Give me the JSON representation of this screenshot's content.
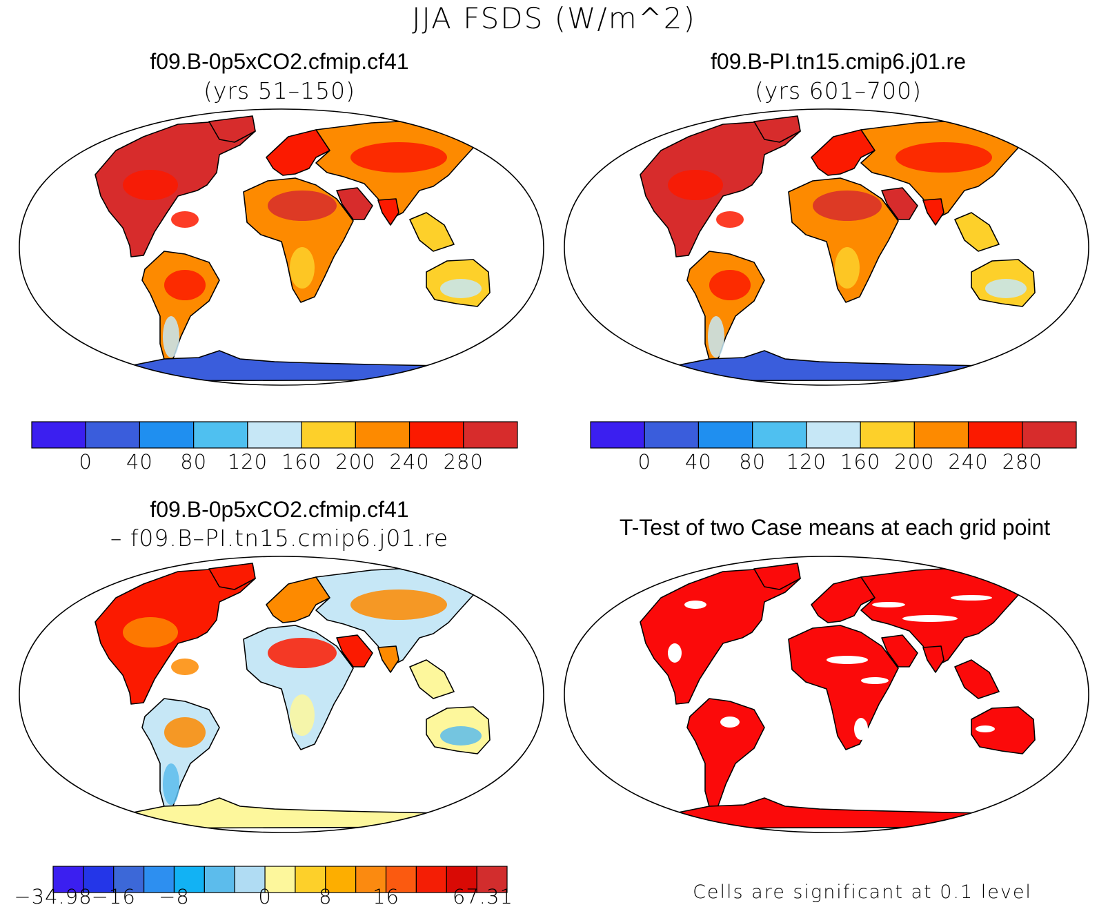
{
  "title": "JJA FSDS (W/m^2)",
  "panels": {
    "top_left": {
      "title": "f09.B-0p5xCO2.cfmip.cf41",
      "subtitle": "(yrs 51–150)"
    },
    "top_right": {
      "title": "f09.B-PI.tn15.cmip6.j01.re",
      "subtitle": "(yrs 601–700)"
    },
    "bottom_left": {
      "title": "f09.B-0p5xCO2.cfmip.cf41",
      "subtitle": "– f09.B–PI.tn15.cmip6.j01.re"
    },
    "bottom_right": {
      "title": "T-Test of two Case means at each grid point",
      "note": "Cells are significant at 0.1 level"
    }
  },
  "colorbars": {
    "fsds": {
      "colors": [
        "#3b1ff0",
        "#3a5ddc",
        "#1f8ff0",
        "#4fc0f0",
        "#c6e7f6",
        "#fdd02a",
        "#fd8a00",
        "#fb1a00",
        "#d72c2c"
      ],
      "labels": [
        "0",
        "40",
        "80",
        "120",
        "160",
        "200",
        "240",
        "280"
      ]
    },
    "diff": {
      "colors": [
        "#3b1ff0",
        "#2436e8",
        "#3c68d8",
        "#2d8ff0",
        "#12b2f4",
        "#5cbcec",
        "#b0dcf3",
        "#fdf79c",
        "#fdd02a",
        "#fdae00",
        "#fb8a10",
        "#fb5a10",
        "#f41e05",
        "#d90a05",
        "#d22d2d"
      ],
      "labels": [
        "−34.98",
        "−16",
        "−8",
        "0",
        "8",
        "16",
        "67.31"
      ]
    }
  },
  "map_fills": {
    "top_left": {
      "land": "#fd8a00",
      "hot": "#d72c2c",
      "mid": "#fb1a00",
      "cool": "#fdd02a",
      "cold": "#c6e7f6",
      "ice": "#3a5ddc"
    },
    "top_right": {
      "land": "#fd8a00",
      "hot": "#d72c2c",
      "mid": "#fb1a00",
      "cool": "#fdd02a",
      "cold": "#c6e7f6",
      "ice": "#3a5ddc"
    },
    "bottom_left": {
      "land": "#c6e7f6",
      "hot": "#fb1a00",
      "mid": "#fd8a00",
      "cool": "#fdf79c",
      "cold": "#5cbcec",
      "ice": "#fdf79c"
    },
    "bottom_right": {
      "land": "#fb0a0a",
      "hot": "#fb0a0a",
      "mid": "#fb0a0a",
      "cool": "#fb0a0a",
      "cold": "#fb0a0a",
      "ice": "#fb0a0a"
    }
  }
}
